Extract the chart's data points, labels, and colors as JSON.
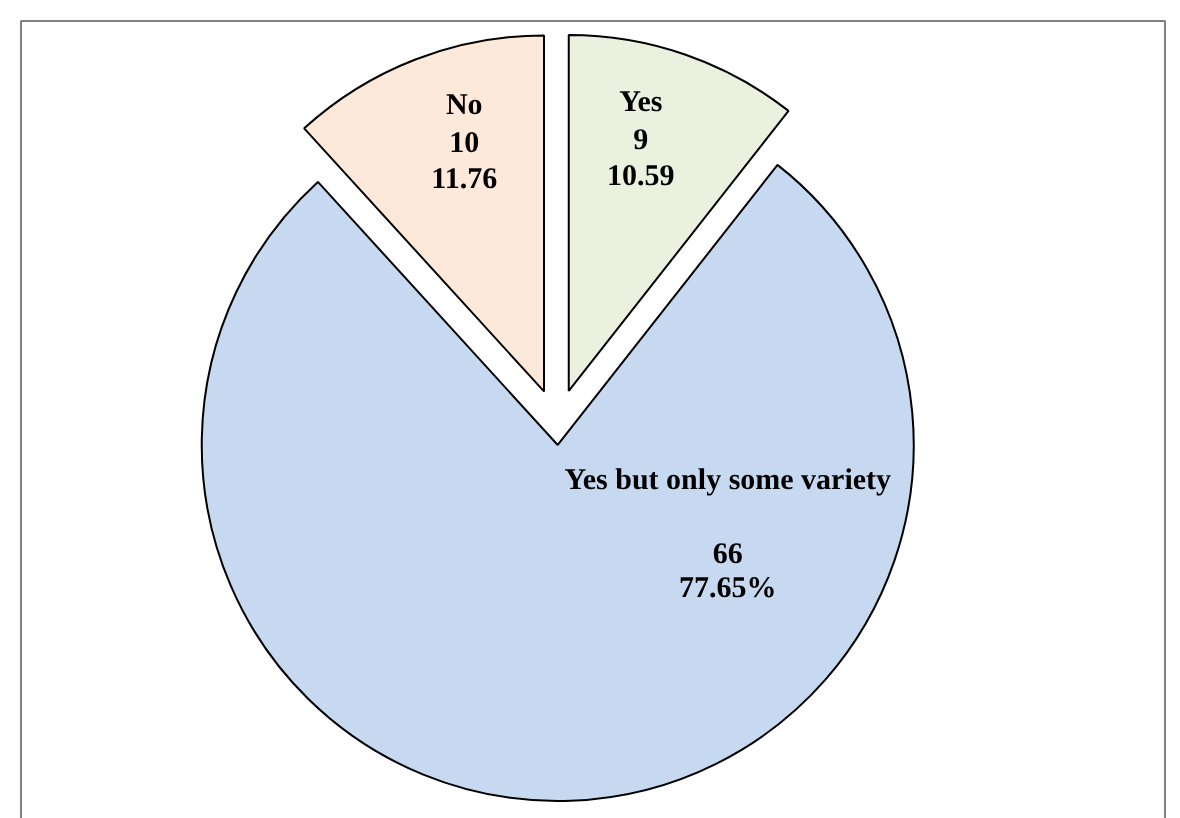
{
  "chart_data": {
    "type": "pie",
    "categories": [
      "Yes",
      "Yes but only some variety",
      "No"
    ],
    "values": [
      9,
      66,
      10
    ],
    "colors": [
      "#ebf1de",
      "#c6d9f0",
      "#fde9d9"
    ],
    "value_labels": [
      "9\n10.59",
      "66\n77.65%",
      "10\n11.76"
    ]
  }
}
